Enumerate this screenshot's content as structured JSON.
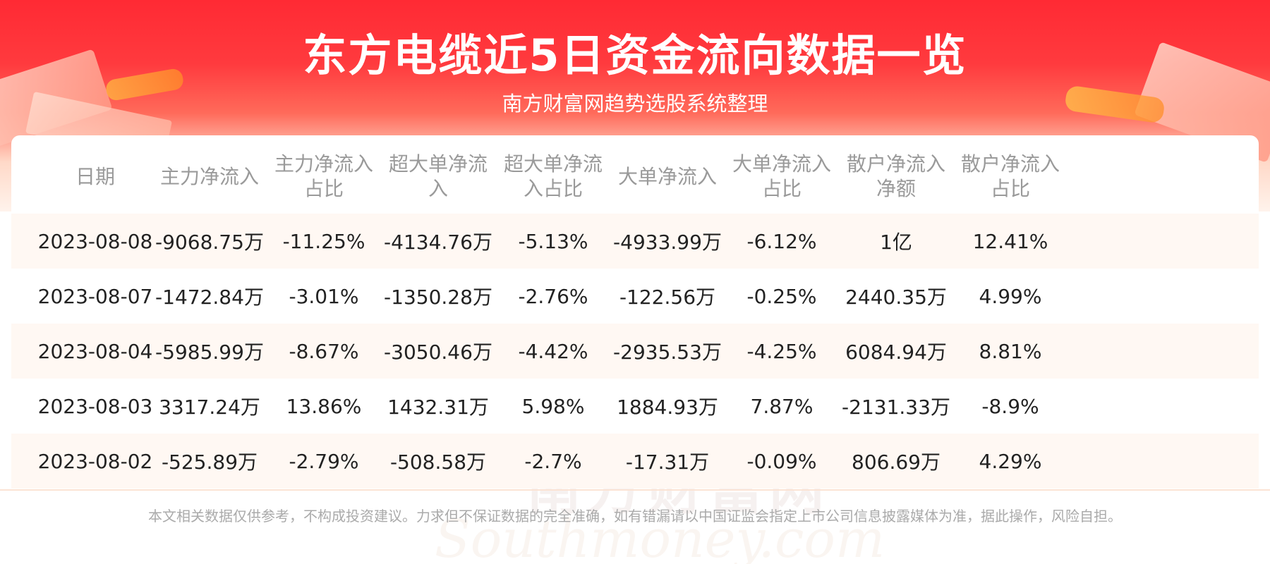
{
  "header": {
    "title": "东方电缆近5日资金流向数据一览",
    "subtitle": "南方财富网趋势选股系统整理"
  },
  "watermark": {
    "cn": "南方财富网",
    "en": "Southmoney.com"
  },
  "table": {
    "columns": [
      [
        "日期"
      ],
      [
        "主力净流入"
      ],
      [
        "主力净流入",
        "占比"
      ],
      [
        "超大单净流",
        "入"
      ],
      [
        "超大单净流",
        "入占比"
      ],
      [
        "大单净流入"
      ],
      [
        "大单净流入",
        "占比"
      ],
      [
        "散户净流入",
        "净额"
      ],
      [
        "散户净流入",
        "占比"
      ]
    ],
    "rows": [
      [
        "2023-08-08",
        "-9068.75万",
        "-11.25%",
        "-4134.76万",
        "-5.13%",
        "-4933.99万",
        "-6.12%",
        "1亿",
        "12.41%"
      ],
      [
        "2023-08-07",
        "-1472.84万",
        "-3.01%",
        "-1350.28万",
        "-2.76%",
        "-122.56万",
        "-0.25%",
        "2440.35万",
        "4.99%"
      ],
      [
        "2023-08-04",
        "-5985.99万",
        "-8.67%",
        "-3050.46万",
        "-4.42%",
        "-2935.53万",
        "-4.25%",
        "6084.94万",
        "8.81%"
      ],
      [
        "2023-08-03",
        "3317.24万",
        "13.86%",
        "1432.31万",
        "5.98%",
        "1884.93万",
        "7.87%",
        "-2131.33万",
        "-8.9%"
      ],
      [
        "2023-08-02",
        "-525.89万",
        "-2.79%",
        "-508.58万",
        "-2.7%",
        "-17.31万",
        "-0.09%",
        "806.69万",
        "4.29%"
      ]
    ]
  },
  "footer": {
    "disclaimer": "本文相关数据仅供参考，不构成投资建议。力求但不保证数据的完全准确，如有错漏请以中国证监会指定上市公司信息披露媒体为准，据此操作，风险自担。"
  },
  "colors": {
    "banner_red": "#ff2a34",
    "row_stripe": "#fff8f3",
    "header_text": "#9a9a9a",
    "cell_text": "#222222"
  }
}
